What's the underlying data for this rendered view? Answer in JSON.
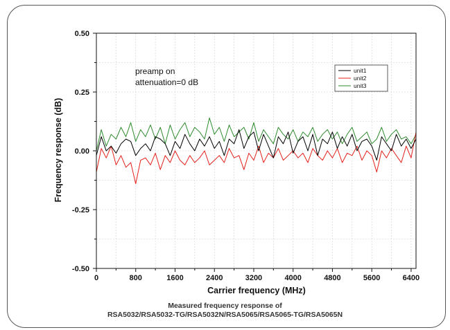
{
  "chart_data": {
    "type": "line",
    "xlabel": "Carrier frequency (MHz)",
    "ylabel": "Frequency response (dB)",
    "xlim": [
      0,
      6500
    ],
    "ylim": [
      -0.5,
      0.5
    ],
    "xticks": [
      "0",
      "800",
      "1600",
      "2400",
      "3200",
      "4000",
      "4800",
      "5600",
      "6400"
    ],
    "yticks": [
      "0.50",
      "0.25",
      "0.00",
      "-0.25",
      "-0.50"
    ],
    "grid": true,
    "legend_position": "top-right",
    "annotations": [
      "preamp on",
      "attenuation=0 dB"
    ],
    "x": [
      0,
      100,
      200,
      300,
      400,
      500,
      600,
      700,
      800,
      900,
      1000,
      1100,
      1200,
      1300,
      1400,
      1500,
      1600,
      1700,
      1800,
      1900,
      2000,
      2100,
      2200,
      2300,
      2400,
      2500,
      2600,
      2700,
      2800,
      2900,
      3000,
      3100,
      3200,
      3300,
      3400,
      3500,
      3600,
      3700,
      3800,
      3900,
      4000,
      4100,
      4200,
      4300,
      4400,
      4500,
      4600,
      4700,
      4800,
      4900,
      5000,
      5100,
      5200,
      5300,
      5400,
      5500,
      5600,
      5700,
      5800,
      5900,
      6000,
      6100,
      6200,
      6300,
      6400,
      6500
    ],
    "series": [
      {
        "name": "unit1",
        "color": "#000000",
        "values": [
          -0.02,
          0.06,
          0.0,
          0.02,
          -0.01,
          0.03,
          0.05,
          0.04,
          -0.02,
          0.01,
          0.03,
          0.0,
          0.06,
          0.05,
          0.03,
          -0.02,
          0.04,
          0.01,
          0.07,
          0.03,
          0.0,
          0.05,
          0.02,
          0.06,
          0.01,
          0.04,
          -0.02,
          0.05,
          0.03,
          0.09,
          0.01,
          0.06,
          0.08,
          0.0,
          0.07,
          0.02,
          -0.03,
          0.06,
          0.03,
          0.08,
          -0.01,
          0.04,
          0.06,
          0.0,
          0.07,
          -0.02,
          0.05,
          0.03,
          0.08,
          0.01,
          0.06,
          0.02,
          0.07,
          0.0,
          0.04,
          0.05,
          0.02,
          -0.04,
          0.06,
          0.03,
          0.0,
          0.07,
          0.02,
          0.05,
          0.01,
          0.05
        ]
      },
      {
        "name": "unit2",
        "color": "#e3201b",
        "values": [
          -0.09,
          0.01,
          -0.03,
          0.02,
          -0.06,
          -0.02,
          -0.07,
          -0.05,
          -0.14,
          -0.04,
          -0.03,
          -0.06,
          -0.01,
          -0.08,
          -0.02,
          -0.05,
          0.0,
          -0.04,
          -0.06,
          -0.02,
          -0.05,
          -0.03,
          0.0,
          -0.06,
          -0.04,
          -0.02,
          -0.05,
          0.01,
          -0.03,
          -0.02,
          -0.08,
          -0.01,
          -0.04,
          0.02,
          -0.05,
          -0.01,
          -0.03,
          0.01,
          -0.04,
          -0.02,
          0.0,
          -0.03,
          -0.01,
          -0.05,
          0.01,
          -0.02,
          -0.04,
          0.0,
          -0.03,
          0.01,
          -0.05,
          -0.01,
          -0.02,
          0.02,
          -0.04,
          0.0,
          -0.02,
          -0.09,
          0.0,
          -0.03,
          0.01,
          -0.02,
          -0.05,
          0.02,
          -0.03,
          0.08
        ]
      },
      {
        "name": "unit3",
        "color": "#2e8b2e",
        "values": [
          0.0,
          0.09,
          0.02,
          0.07,
          0.05,
          0.1,
          0.06,
          0.12,
          0.04,
          0.09,
          0.06,
          0.11,
          0.05,
          0.1,
          0.03,
          0.11,
          0.05,
          0.09,
          0.12,
          0.06,
          0.1,
          0.08,
          0.05,
          0.14,
          0.07,
          0.1,
          0.04,
          0.11,
          0.06,
          0.08,
          0.1,
          0.05,
          0.12,
          0.04,
          0.09,
          0.06,
          0.03,
          0.1,
          0.07,
          0.05,
          0.09,
          0.04,
          0.08,
          0.06,
          0.1,
          0.04,
          0.07,
          0.09,
          0.05,
          0.08,
          0.03,
          0.07,
          0.1,
          0.04,
          0.06,
          0.08,
          0.03,
          0.05,
          0.1,
          0.04,
          0.07,
          0.09,
          0.05,
          0.06,
          0.03,
          0.07
        ]
      }
    ],
    "caption": [
      "Measured frequency response of",
      "RSA5032/RSA5032-TG/RSA5032N/RSA5065/RSA5065-TG/RSA5065N"
    ]
  }
}
